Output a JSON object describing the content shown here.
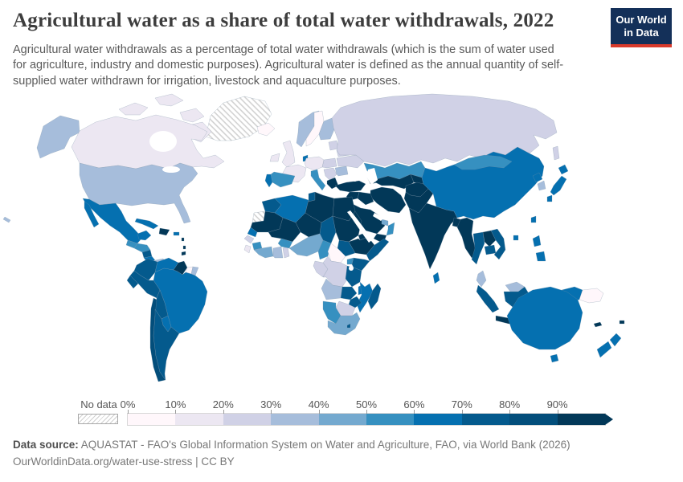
{
  "header": {
    "title": "Agricultural water as a share of total water withdrawals, 2022",
    "subtitle": "Agricultural water withdrawals as a percentage of total water withdrawals (which is the sum of water used for agriculture, industry and domestic purposes). Agricultural water is defined as the annual quantity of self-supplied water withdrawn for irrigation, livestock and aquaculture purposes.",
    "logo": {
      "line1": "Our World",
      "line2": "in Data",
      "bg_color": "#143059",
      "accent_color": "#d93a2b"
    }
  },
  "footer": {
    "source_label": "Data source:",
    "source_text": " AQUASTAT - FAO's Global Information System on Water and Agriculture, FAO, via World Bank (2026)",
    "license_text": "OurWorldinData.org/water-use-stress | CC BY"
  },
  "chart_data": {
    "type": "choropleth",
    "title": "Agricultural water as a share of total water withdrawals, 2022",
    "year": 2022,
    "unit": "% of total water withdrawals",
    "no_data_label": "No data",
    "legend_ticks": [
      "0%",
      "10%",
      "20%",
      "30%",
      "40%",
      "50%",
      "60%",
      "70%",
      "80%",
      "90%"
    ],
    "bins": [
      {
        "range": "0-10%",
        "color": "#fff7fb"
      },
      {
        "range": "10-20%",
        "color": "#ece7f2"
      },
      {
        "range": "20-30%",
        "color": "#d0d1e6"
      },
      {
        "range": "30-40%",
        "color": "#a6bddb"
      },
      {
        "range": "40-50%",
        "color": "#74a9cf"
      },
      {
        "range": "50-60%",
        "color": "#3690c0"
      },
      {
        "range": "60-70%",
        "color": "#0570b0"
      },
      {
        "range": "70-80%",
        "color": "#045a8d"
      },
      {
        "range": "80-90%",
        "color": "#034e7b"
      },
      {
        "range": "90-100%",
        "color": "#023858"
      }
    ],
    "regions": [
      {
        "key": "greenland",
        "name": "Greenland",
        "bin": "No data"
      },
      {
        "key": "western_sahara",
        "name": "Western Sahara",
        "bin": "No data"
      },
      {
        "key": "iceland",
        "name": "Iceland",
        "bin": "0-10%"
      },
      {
        "key": "sweden",
        "name": "Sweden",
        "bin": "0-10%"
      },
      {
        "key": "suriname",
        "name": "Suriname",
        "bin": "0-10%"
      },
      {
        "key": "central_african_republic",
        "name": "Central African Republic",
        "bin": "0-10%"
      },
      {
        "key": "papua_new_guinea",
        "name": "Papua New Guinea",
        "bin": "0-10%"
      },
      {
        "key": "canada",
        "name": "Canada",
        "bin": "10-20%"
      },
      {
        "key": "united_kingdom",
        "name": "United Kingdom",
        "bin": "10-20%"
      },
      {
        "key": "ireland",
        "name": "Ireland",
        "bin": "10-20%"
      },
      {
        "key": "france",
        "name": "France",
        "bin": "10-20%"
      },
      {
        "key": "germany",
        "name": "Germany",
        "bin": "10-20%"
      },
      {
        "key": "sierra_leone",
        "name": "Sierra Leone",
        "bin": "10-20%"
      },
      {
        "key": "russia",
        "name": "Russia",
        "bin": "20-30%"
      },
      {
        "key": "ukraine",
        "name": "Ukraine",
        "bin": "20-30%"
      },
      {
        "key": "belarus",
        "name": "Belarus",
        "bin": "20-30%"
      },
      {
        "key": "poland",
        "name": "Poland",
        "bin": "20-30%"
      },
      {
        "key": "baltic_states",
        "name": "Baltic states",
        "bin": "20-30%"
      },
      {
        "key": "balkans",
        "name": "Balkans",
        "bin": "20-30%"
      },
      {
        "key": "drc",
        "name": "Democratic Republic of Congo",
        "bin": "20-30%"
      },
      {
        "key": "congo_gabon",
        "name": "Congo and Gabon",
        "bin": "20-30%"
      },
      {
        "key": "botswana",
        "name": "Botswana",
        "bin": "20-30%"
      },
      {
        "key": "togo_benin",
        "name": "Togo and Benin",
        "bin": "20-30%"
      },
      {
        "key": "guinea_bissau",
        "name": "Guinea-Bissau",
        "bin": "20-30%"
      },
      {
        "key": "united_states",
        "name": "United States",
        "bin": "30-40%"
      },
      {
        "key": "norway",
        "name": "Norway",
        "bin": "30-40%"
      },
      {
        "key": "finland",
        "name": "Finland",
        "bin": "30-40%"
      },
      {
        "key": "romania",
        "name": "Romania",
        "bin": "30-40%"
      },
      {
        "key": "angola",
        "name": "Angola",
        "bin": "30-40%"
      },
      {
        "key": "ghana",
        "name": "Ghana",
        "bin": "30-40%"
      },
      {
        "key": "malaysia",
        "name": "Malaysia",
        "bin": "30-40%"
      },
      {
        "key": "south_korea",
        "name": "South Korea",
        "bin": "30-40%"
      },
      {
        "key": "french_guiana",
        "name": "French Guiana",
        "bin": "30-40%"
      },
      {
        "key": "panama",
        "name": "Panama",
        "bin": "30-40%"
      },
      {
        "key": "south_africa",
        "name": "South Africa",
        "bin": "40-50%"
      },
      {
        "key": "nigeria",
        "name": "Nigeria",
        "bin": "40-50%"
      },
      {
        "key": "cote_divoire",
        "name": "Cote d'Ivoire",
        "bin": "40-50%"
      },
      {
        "key": "uae_qatar",
        "name": "United Arab Emirates and Qatar",
        "bin": "40-50%"
      },
      {
        "key": "spain",
        "name": "Spain",
        "bin": "50-60%"
      },
      {
        "key": "italy",
        "name": "Italy",
        "bin": "50-60%"
      },
      {
        "key": "kazakhstan",
        "name": "Kazakhstan",
        "bin": "50-60%"
      },
      {
        "key": "mongolia",
        "name": "Mongolia",
        "bin": "50-60%"
      },
      {
        "key": "guinea",
        "name": "Guinea",
        "bin": "50-60%"
      },
      {
        "key": "burkina_faso",
        "name": "Burkina Faso",
        "bin": "50-60%"
      },
      {
        "key": "cameroon",
        "name": "Cameroon",
        "bin": "50-60%"
      },
      {
        "key": "uganda",
        "name": "Uganda",
        "bin": "50-60%"
      },
      {
        "key": "namibia",
        "name": "Namibia",
        "bin": "50-60%"
      },
      {
        "key": "oman",
        "name": "Oman",
        "bin": "50-60%"
      },
      {
        "key": "guatemala",
        "name": "Guatemala",
        "bin": "50-60%"
      },
      {
        "key": "honduras",
        "name": "Honduras",
        "bin": "50-60%"
      },
      {
        "key": "mexico",
        "name": "Mexico",
        "bin": "60-70%"
      },
      {
        "key": "cuba",
        "name": "Cuba",
        "bin": "60-70%"
      },
      {
        "key": "puerto_rico",
        "name": "Puerto Rico",
        "bin": "60-70%"
      },
      {
        "key": "costa_rica",
        "name": "Costa Rica",
        "bin": "60-70%"
      },
      {
        "key": "venezuela",
        "name": "Venezuela",
        "bin": "60-70%"
      },
      {
        "key": "brazil",
        "name": "Brazil",
        "bin": "60-70%"
      },
      {
        "key": "paraguay",
        "name": "Paraguay",
        "bin": "60-70%"
      },
      {
        "key": "senegal",
        "name": "Senegal",
        "bin": "60-70%"
      },
      {
        "key": "algeria",
        "name": "Algeria",
        "bin": "60-70%"
      },
      {
        "key": "mozambique",
        "name": "Mozambique",
        "bin": "60-70%"
      },
      {
        "key": "malawi",
        "name": "Malawi",
        "bin": "60-70%"
      },
      {
        "key": "china",
        "name": "China",
        "bin": "60-70%"
      },
      {
        "key": "japan",
        "name": "Japan",
        "bin": "60-70%"
      },
      {
        "key": "north_korea",
        "name": "North Korea",
        "bin": "60-70%"
      },
      {
        "key": "taiwan",
        "name": "Taiwan",
        "bin": "60-70%"
      },
      {
        "key": "hainan",
        "name": "Hainan",
        "bin": "60-70%"
      },
      {
        "key": "philippines",
        "name": "Philippines",
        "bin": "60-70%"
      },
      {
        "key": "sri_lanka",
        "name": "Sri Lanka",
        "bin": "60-70%"
      },
      {
        "key": "sulawesi",
        "name": "Indonesia (Sulawesi)",
        "bin": "60-70%"
      },
      {
        "key": "west_papua",
        "name": "Indonesia (Papua)",
        "bin": "60-70%"
      },
      {
        "key": "australia",
        "name": "Australia",
        "bin": "60-70%"
      },
      {
        "key": "new_zealand",
        "name": "New Zealand",
        "bin": "60-70%"
      },
      {
        "key": "denmark",
        "name": "Denmark",
        "bin": "60-70%"
      },
      {
        "key": "portugal",
        "name": "Portugal",
        "bin": "60-70%"
      },
      {
        "key": "argentina",
        "name": "Argentina",
        "bin": "70-80%"
      },
      {
        "key": "peru",
        "name": "Peru",
        "bin": "70-80%"
      },
      {
        "key": "bolivia",
        "name": "Bolivia",
        "bin": "70-80%"
      },
      {
        "key": "colombia",
        "name": "Colombia",
        "bin": "70-80%"
      },
      {
        "key": "ecuador",
        "name": "Ecuador",
        "bin": "70-80%"
      },
      {
        "key": "nicaragua",
        "name": "Nicaragua",
        "bin": "70-80%"
      },
      {
        "key": "morocco",
        "name": "Morocco",
        "bin": "70-80%"
      },
      {
        "key": "tunisia",
        "name": "Tunisia",
        "bin": "70-80%"
      },
      {
        "key": "chad",
        "name": "Chad",
        "bin": "70-80%"
      },
      {
        "key": "south_sudan",
        "name": "South Sudan",
        "bin": "70-80%"
      },
      {
        "key": "somalia",
        "name": "Somalia",
        "bin": "70-80%"
      },
      {
        "key": "kenya",
        "name": "Kenya",
        "bin": "70-80%"
      },
      {
        "key": "tanzania",
        "name": "Tanzania",
        "bin": "70-80%"
      },
      {
        "key": "zambia",
        "name": "Zambia",
        "bin": "70-80%"
      },
      {
        "key": "zimbabwe",
        "name": "Zimbabwe",
        "bin": "70-80%"
      },
      {
        "key": "lesotho",
        "name": "Lesotho",
        "bin": "70-80%"
      },
      {
        "key": "madagascar",
        "name": "Madagascar",
        "bin": "70-80%"
      },
      {
        "key": "thailand",
        "name": "Thailand",
        "bin": "70-80%"
      },
      {
        "key": "vietnam",
        "name": "Vietnam",
        "bin": "70-80%"
      },
      {
        "key": "cambodia",
        "name": "Cambodia",
        "bin": "70-80%"
      },
      {
        "key": "sumatra",
        "name": "Indonesia (Sumatra)",
        "bin": "70-80%"
      },
      {
        "key": "kalimantan",
        "name": "Indonesia (Kalimantan)",
        "bin": "70-80%"
      },
      {
        "key": "timor",
        "name": "Timor",
        "bin": "70-80%"
      },
      {
        "key": "chile",
        "name": "Chile",
        "bin": "80-90%"
      },
      {
        "key": "india",
        "name": "India",
        "bin": "90-100%"
      },
      {
        "key": "pakistan",
        "name": "Pakistan",
        "bin": "90-100%"
      },
      {
        "key": "afghanistan",
        "name": "Afghanistan",
        "bin": "90-100%"
      },
      {
        "key": "iran",
        "name": "Iran",
        "bin": "90-100%"
      },
      {
        "key": "iraq",
        "name": "Iraq",
        "bin": "90-100%"
      },
      {
        "key": "syria",
        "name": "Syria and Levant",
        "bin": "90-100%"
      },
      {
        "key": "turkey",
        "name": "Turkey",
        "bin": "90-100%"
      },
      {
        "key": "caucasus",
        "name": "Caucasus",
        "bin": "90-100%"
      },
      {
        "key": "saudi_arabia",
        "name": "Saudi Arabia",
        "bin": "90-100%"
      },
      {
        "key": "yemen",
        "name": "Yemen",
        "bin": "90-100%"
      },
      {
        "key": "uzbekistan_turkmenistan",
        "name": "Uzbekistan and Turkmenistan",
        "bin": "90-100%"
      },
      {
        "key": "kyrgyzstan_tajikistan",
        "name": "Kyrgyzstan and Tajikistan",
        "bin": "90-100%"
      },
      {
        "key": "libya",
        "name": "Libya",
        "bin": "90-100%"
      },
      {
        "key": "egypt",
        "name": "Egypt",
        "bin": "90-100%"
      },
      {
        "key": "sudan",
        "name": "Sudan",
        "bin": "90-100%"
      },
      {
        "key": "eritrea",
        "name": "Eritrea",
        "bin": "90-100%"
      },
      {
        "key": "ethiopia",
        "name": "Ethiopia",
        "bin": "90-100%"
      },
      {
        "key": "mauritania",
        "name": "Mauritania",
        "bin": "90-100%"
      },
      {
        "key": "mali",
        "name": "Mali",
        "bin": "90-100%"
      },
      {
        "key": "niger",
        "name": "Niger",
        "bin": "90-100%"
      },
      {
        "key": "myanmar",
        "name": "Myanmar",
        "bin": "90-100%"
      },
      {
        "key": "laos",
        "name": "Laos",
        "bin": "90-100%"
      },
      {
        "key": "bangladesh",
        "name": "Bangladesh",
        "bin": "90-100%"
      },
      {
        "key": "java",
        "name": "Indonesia (Java)",
        "bin": "90-100%"
      },
      {
        "key": "hispaniola",
        "name": "Hispaniola",
        "bin": "90-100%"
      },
      {
        "key": "greece",
        "name": "Greece",
        "bin": "90-100%"
      },
      {
        "key": "guyana",
        "name": "Guyana",
        "bin": "90-100%"
      },
      {
        "key": "trinidad",
        "name": "Trinidad and Tobago",
        "bin": "90-100%"
      },
      {
        "key": "fiji",
        "name": "Fiji",
        "bin": "90-100%"
      },
      {
        "key": "new_caledonia",
        "name": "New Caledonia",
        "bin": "90-100%"
      },
      {
        "key": "lesser_antilles",
        "name": "Lesser Antilles",
        "bin": "90-100%"
      }
    ]
  }
}
